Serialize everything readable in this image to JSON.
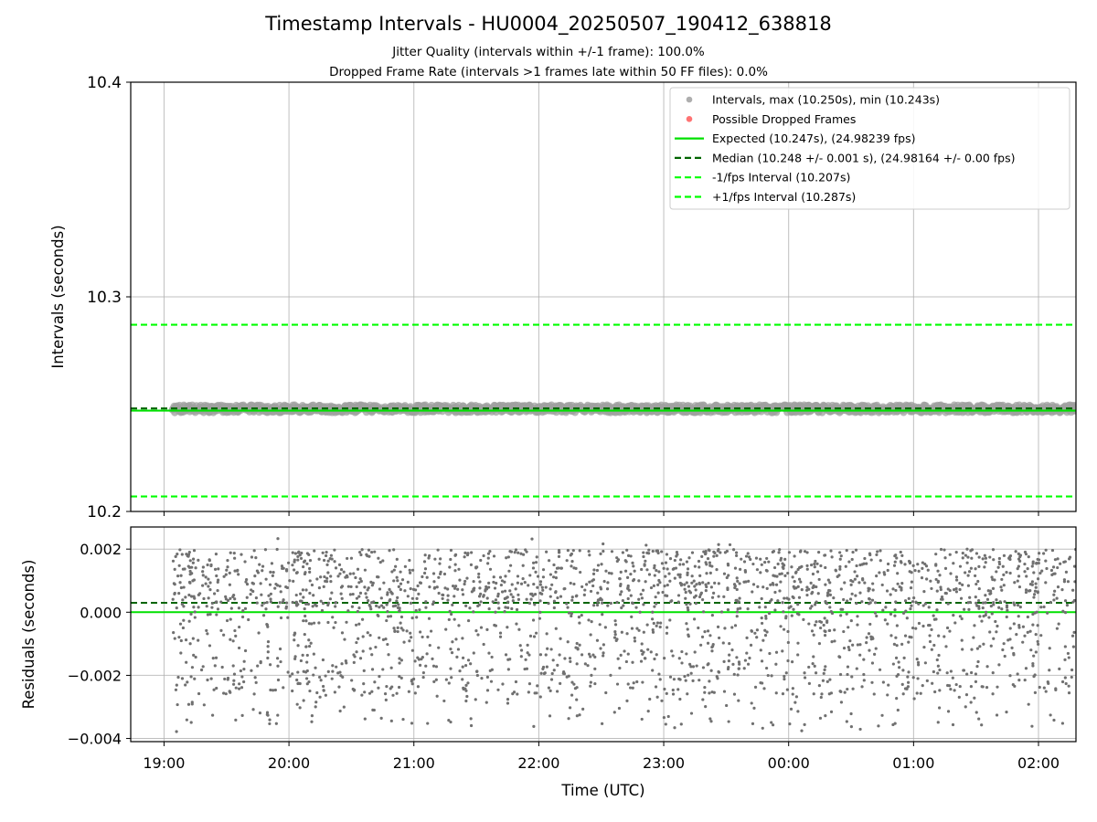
{
  "header": {
    "title": "Timestamp Intervals - HU0004_20250507_190412_638818",
    "subtitle1": "Jitter Quality (intervals within +/-1 frame): 100.0%",
    "subtitle2": "Dropped Frame Rate (intervals >1 frames late within 50 FF files): 0.0%"
  },
  "chart_data": [
    {
      "type": "scatter",
      "ylabel": "Intervals (seconds)",
      "xlabel": "",
      "ylim": [
        10.2,
        10.4
      ],
      "yticks": [
        "10.2",
        "10.3",
        "10.4"
      ],
      "grid": true,
      "legend_position": "top-right",
      "series": [
        {
          "name": "Intervals, max (10.250s), min (10.243s)",
          "kind": "points",
          "color": "#a0a0a0",
          "x_range": [
            "19:04",
            "02:18"
          ],
          "y_range": [
            10.243,
            10.25
          ],
          "median": 10.248
        },
        {
          "name": "Possible Dropped Frames",
          "kind": "points",
          "color": "#ff5a5a",
          "values": []
        },
        {
          "name": "Expected (10.247s), (24.98239 fps)",
          "kind": "hline",
          "value": 10.247,
          "color": "#00e000",
          "style": "solid"
        },
        {
          "name": "Median (10.248 +/- 0.001 s), (24.98164 +/- 0.00 fps)",
          "kind": "hline",
          "value": 10.248,
          "color": "#006400",
          "style": "dashed"
        },
        {
          "name": "-1/fps Interval (10.207s)",
          "kind": "hline",
          "value": 10.207,
          "color": "#00ff00",
          "style": "dashed"
        },
        {
          "name": "+1/fps Interval (10.287s)",
          "kind": "hline",
          "value": 10.287,
          "color": "#00ff00",
          "style": "dashed"
        }
      ]
    },
    {
      "type": "scatter",
      "ylabel": "Residuals (seconds)",
      "xlabel": "Time (UTC)",
      "xlim": [
        "18:44",
        "02:18"
      ],
      "xticks": [
        "19:00",
        "20:00",
        "21:00",
        "22:00",
        "23:00",
        "00:00",
        "01:00",
        "02:00"
      ],
      "ylim": [
        -0.0041,
        0.0027
      ],
      "yticks": [
        "−0.004",
        "−0.002",
        "0.000",
        "0.002"
      ],
      "grid": true,
      "series": [
        {
          "name": "",
          "kind": "points",
          "color": "#707070",
          "x_range": [
            "19:04",
            "02:18"
          ],
          "y_range": [
            -0.0038,
            0.0024
          ]
        },
        {
          "name": "",
          "kind": "hline",
          "value": 0.0,
          "color": "#00e000",
          "style": "solid"
        },
        {
          "name": "",
          "kind": "hline",
          "value": 0.0003,
          "color": "#006400",
          "style": "dashed"
        }
      ]
    }
  ]
}
